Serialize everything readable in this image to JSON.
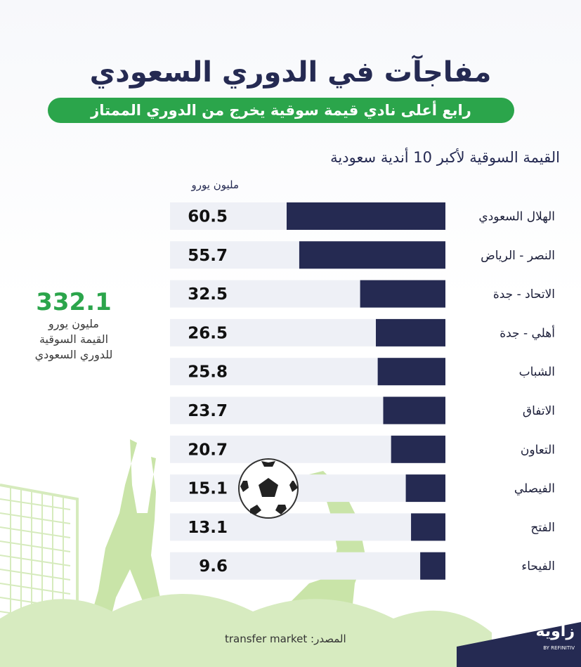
{
  "header": {
    "title": "مفاجآت في الدوري السعودي",
    "subtitle": "رابع أعلى نادي قيمة سوقية يخرج من الدوري الممتاز"
  },
  "chart_heading": "القيمة السوقية لأكبر 10 أندية سعودية",
  "unit_label": "مليون يورو",
  "total": {
    "value": "332.1",
    "line1": "مليون يورو",
    "line2": "القيمة السوقية",
    "line3": "للدوري السعودي"
  },
  "source": "المصدر: transfer market",
  "logo": {
    "name": "زاوية",
    "sub": "BY REFINITIV"
  },
  "colors": {
    "bar": "#252a52",
    "track": "#eef0f6",
    "accent": "#2ba54b",
    "decor": "#c9e4a8"
  },
  "chart_data": {
    "type": "bar",
    "orientation": "horizontal",
    "title": "القيمة السوقية لأكبر 10 أندية سعودية",
    "unit": "مليون يورو",
    "categories": [
      "الهلال السعودي",
      "النصر - الرياض",
      "الاتحاد - جدة",
      "أهلي - جدة",
      "الشباب",
      "الاتفاق",
      "التعاون",
      "الفيصلي",
      "الفتح",
      "الفيحاء"
    ],
    "values": [
      60.5,
      55.7,
      32.5,
      26.5,
      25.8,
      23.7,
      20.7,
      15.1,
      13.1,
      9.6
    ],
    "value_labels": [
      "60.5",
      "55.7",
      "32.5",
      "26.5",
      "25.8",
      "23.7",
      "20.7",
      "15.1",
      "13.1",
      "9.6"
    ],
    "xlim": [
      0,
      60.5
    ],
    "grid": false,
    "legend": "none"
  }
}
